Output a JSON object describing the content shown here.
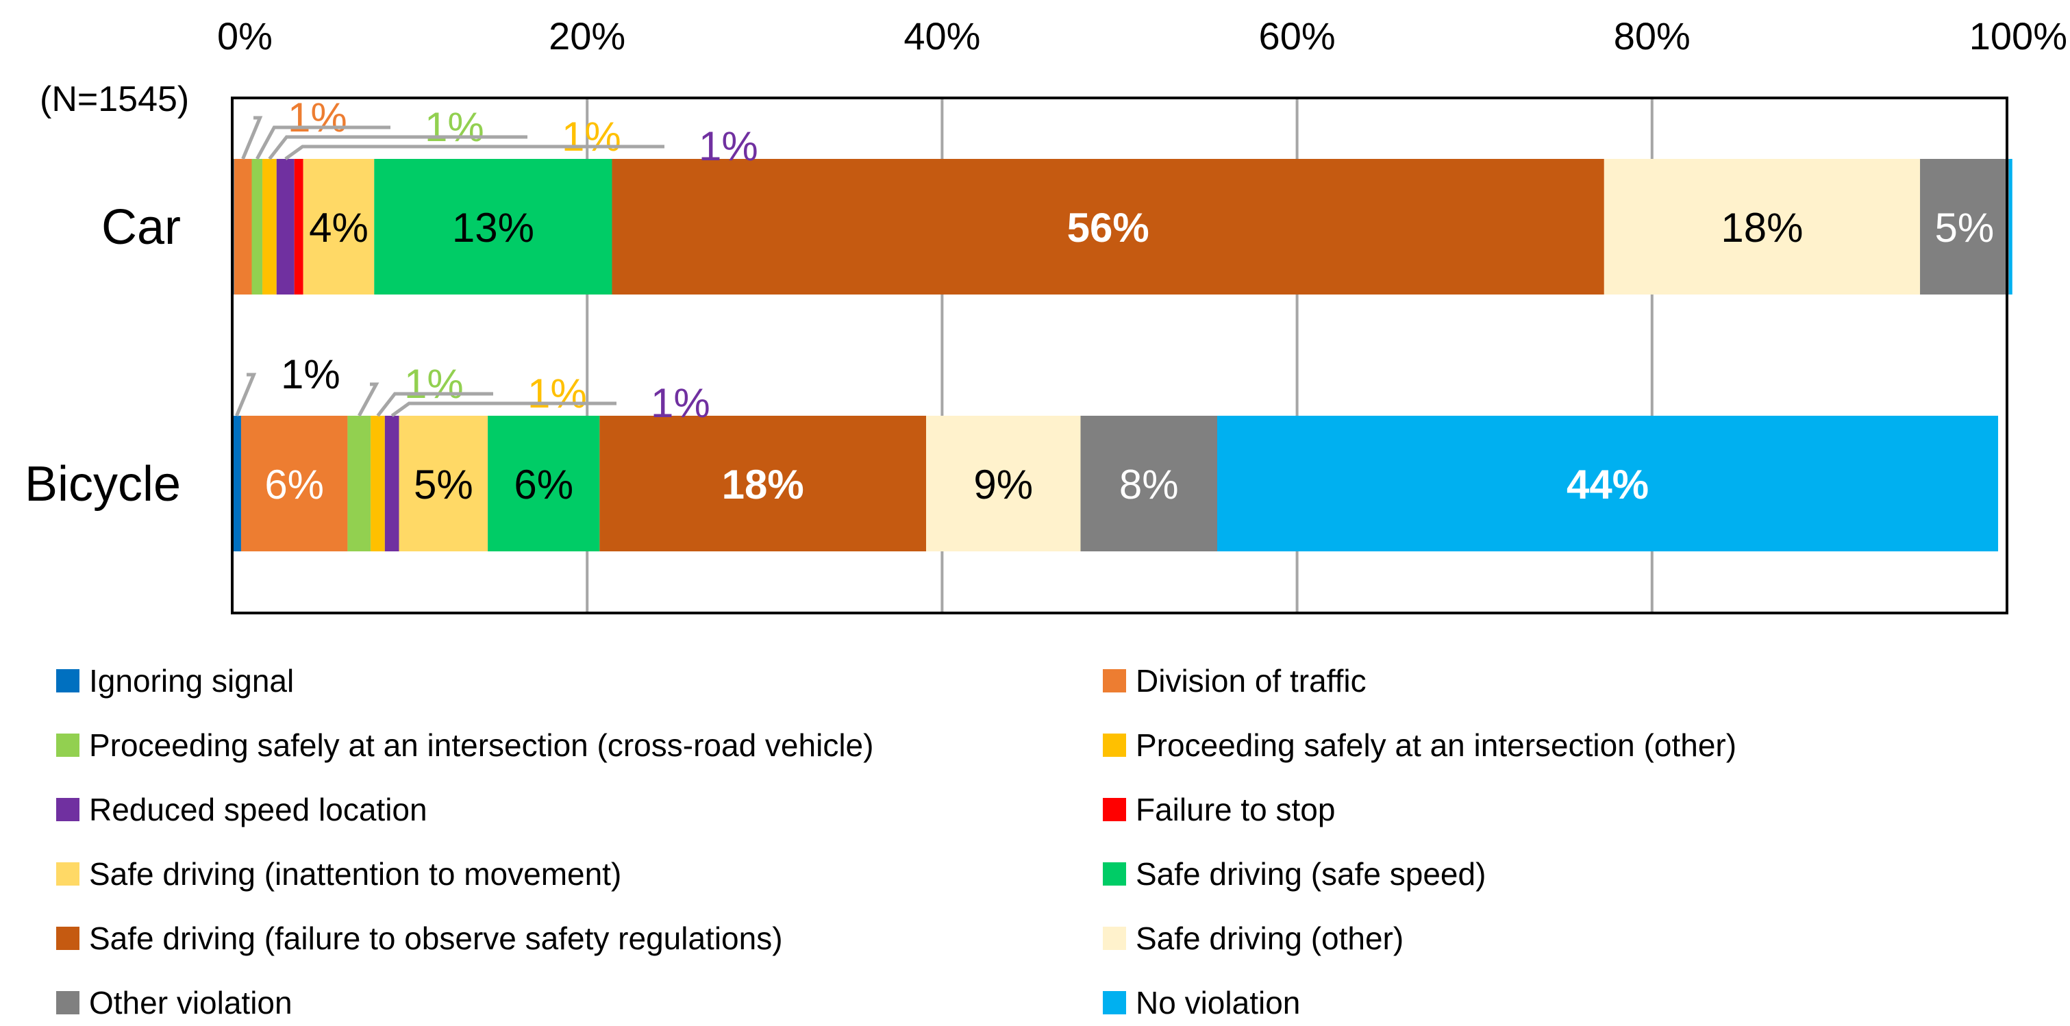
{
  "chart_data": {
    "type": "bar",
    "orientation": "horizontal",
    "stacked": "percent",
    "sample_note": "(N=1545)",
    "xlim": [
      0,
      100
    ],
    "x_ticks": [
      "0%",
      "20%",
      "40%",
      "60%",
      "80%",
      "100%"
    ],
    "categories": [
      "Car",
      "Bicycle"
    ],
    "series": [
      {
        "name": "Ignoring signal",
        "color": "#0070C0",
        "values": [
          0.1,
          0.5
        ]
      },
      {
        "name": "Division of traffic",
        "color": "#ED7D31",
        "values": [
          1.0,
          6.0
        ]
      },
      {
        "name": "Proceeding safely at an intersection (cross-road vehicle)",
        "color": "#92D050",
        "values": [
          0.6,
          1.3
        ]
      },
      {
        "name": "Proceeding safely at an intersection (other)",
        "color": "#FFC000",
        "values": [
          0.8,
          0.8
        ]
      },
      {
        "name": "Reduced speed location",
        "color": "#7030A0",
        "values": [
          1.0,
          0.8
        ]
      },
      {
        "name": "Failure to stop",
        "color": "#FF0000",
        "values": [
          0.5,
          0.0
        ]
      },
      {
        "name": "Safe driving (inattention to movement)",
        "color": "#FFD966",
        "values": [
          4.0,
          5.0
        ]
      },
      {
        "name": "Safe driving (safe speed)",
        "color": "#00CC66",
        "values": [
          13.4,
          6.3
        ]
      },
      {
        "name": "Safe driving (failure to observe safety regulations)",
        "color": "#C55A11",
        "values": [
          55.9,
          18.4
        ]
      },
      {
        "name": "Safe driving (other)",
        "color": "#FFF2CC",
        "values": [
          17.8,
          8.7
        ]
      },
      {
        "name": "Other violation",
        "color": "#808080",
        "values": [
          5.0,
          7.7
        ]
      },
      {
        "name": "No violation",
        "color": "#00B0F0",
        "values": [
          0.2,
          44.0
        ]
      }
    ],
    "segment_labels": [
      {
        "category": "Car",
        "series": "Safe driving (inattention to movement)",
        "text": "4%",
        "color": "#000000",
        "bold": false
      },
      {
        "category": "Car",
        "series": "Safe driving (safe speed)",
        "text": "13%",
        "color": "#000000",
        "bold": false
      },
      {
        "category": "Car",
        "series": "Safe driving (failure to observe safety regulations)",
        "text": "56%",
        "color": "#FFFFFF",
        "bold": true
      },
      {
        "category": "Car",
        "series": "Safe driving (other)",
        "text": "18%",
        "color": "#000000",
        "bold": false
      },
      {
        "category": "Car",
        "series": "Other violation",
        "text": "5%",
        "color": "#FFFFFF",
        "bold": false
      },
      {
        "category": "Bicycle",
        "series": "Division of traffic",
        "text": "6%",
        "color": "#FFFFFF",
        "bold": false
      },
      {
        "category": "Bicycle",
        "series": "Safe driving (inattention to movement)",
        "text": "5%",
        "color": "#000000",
        "bold": false
      },
      {
        "category": "Bicycle",
        "series": "Safe driving (safe speed)",
        "text": "6%",
        "color": "#000000",
        "bold": false
      },
      {
        "category": "Bicycle",
        "series": "Safe driving (failure to observe safety regulations)",
        "text": "18%",
        "color": "#FFFFFF",
        "bold": true
      },
      {
        "category": "Bicycle",
        "series": "Safe driving (other)",
        "text": "9%",
        "color": "#000000",
        "bold": false
      },
      {
        "category": "Bicycle",
        "series": "Other violation",
        "text": "8%",
        "color": "#FFFFFF",
        "bold": false
      },
      {
        "category": "Bicycle",
        "series": "No violation",
        "text": "44%",
        "color": "#FFFFFF",
        "bold": true
      }
    ],
    "callout_labels": [
      {
        "category": "Car",
        "series": "Division of traffic",
        "text": "1%",
        "color": "#ED7D31"
      },
      {
        "category": "Car",
        "series": "Proceeding safely at an intersection (cross-road vehicle)",
        "text": "1%",
        "color": "#92D050"
      },
      {
        "category": "Car",
        "series": "Proceeding safely at an intersection (other)",
        "text": "1%",
        "color": "#FFC000"
      },
      {
        "category": "Car",
        "series": "Reduced speed location",
        "text": "1%",
        "color": "#7030A0"
      },
      {
        "category": "Bicycle",
        "series": "Ignoring signal",
        "text": "1%",
        "color": "#000000"
      },
      {
        "category": "Bicycle",
        "series": "Proceeding safely at an intersection (cross-road vehicle)",
        "text": "1%",
        "color": "#92D050"
      },
      {
        "category": "Bicycle",
        "series": "Proceeding safely at an intersection (other)",
        "text": "1%",
        "color": "#FFC000"
      },
      {
        "category": "Bicycle",
        "series": "Reduced speed location",
        "text": "1%",
        "color": "#7030A0"
      }
    ],
    "legend": {
      "position": "bottom",
      "columns": 2
    },
    "grid": true
  }
}
